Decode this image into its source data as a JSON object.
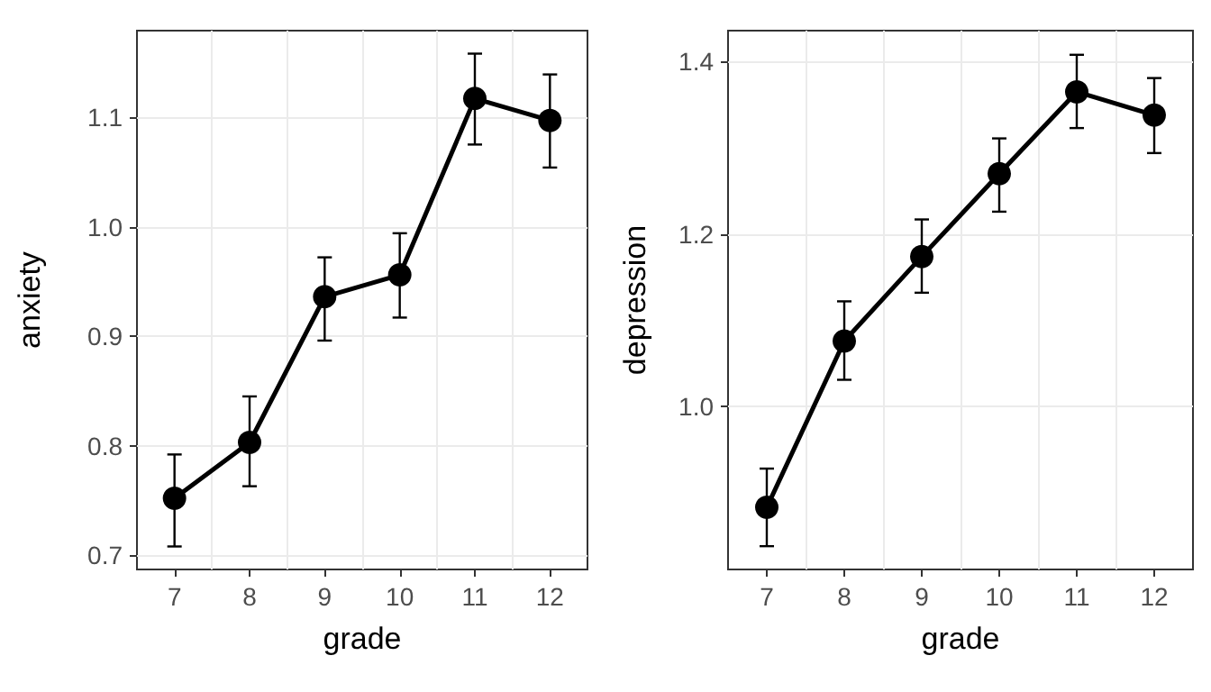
{
  "chart_data": [
    {
      "type": "line",
      "xlabel": "grade",
      "ylabel": "anxiety",
      "categories": [
        "7",
        "8",
        "9",
        "10",
        "11",
        "12"
      ],
      "ylim": [
        0.687,
        1.179
      ],
      "yticks": [
        0.7,
        0.8,
        0.9,
        {
          "value": 1,
          "label": "1.0"
        },
        1.1
      ],
      "grid": true,
      "marker": "circle",
      "line_style": "solid",
      "series": [
        {
          "color": "#000000",
          "values": [
            0.752,
            0.803,
            0.936,
            0.956,
            1.117,
            1.097
          ],
          "errors": [
            [
              0.708,
              0.792
            ],
            [
              0.763,
              0.845
            ],
            [
              0.896,
              0.972
            ],
            [
              0.917,
              0.994
            ],
            [
              1.075,
              1.158
            ],
            [
              1.054,
              1.139
            ]
          ]
        }
      ]
    },
    {
      "type": "line",
      "xlabel": "grade",
      "ylabel": "depression",
      "categories": [
        "7",
        "8",
        "9",
        "10",
        "11",
        "12"
      ],
      "ylim": [
        0.811,
        1.436
      ],
      "yticks": [
        {
          "value": 1,
          "label": "1.0"
        },
        1.2,
        1.4
      ],
      "grid": true,
      "marker": "circle",
      "line_style": "solid",
      "series": [
        {
          "color": "#000000",
          "values": [
            0.883,
            1.076,
            1.174,
            1.27,
            1.365,
            1.338
          ],
          "errors": [
            [
              0.838,
              0.928
            ],
            [
              1.031,
              1.122
            ],
            [
              1.132,
              1.217
            ],
            [
              1.226,
              1.311
            ],
            [
              1.323,
              1.408
            ],
            [
              1.294,
              1.381
            ]
          ]
        }
      ]
    }
  ]
}
